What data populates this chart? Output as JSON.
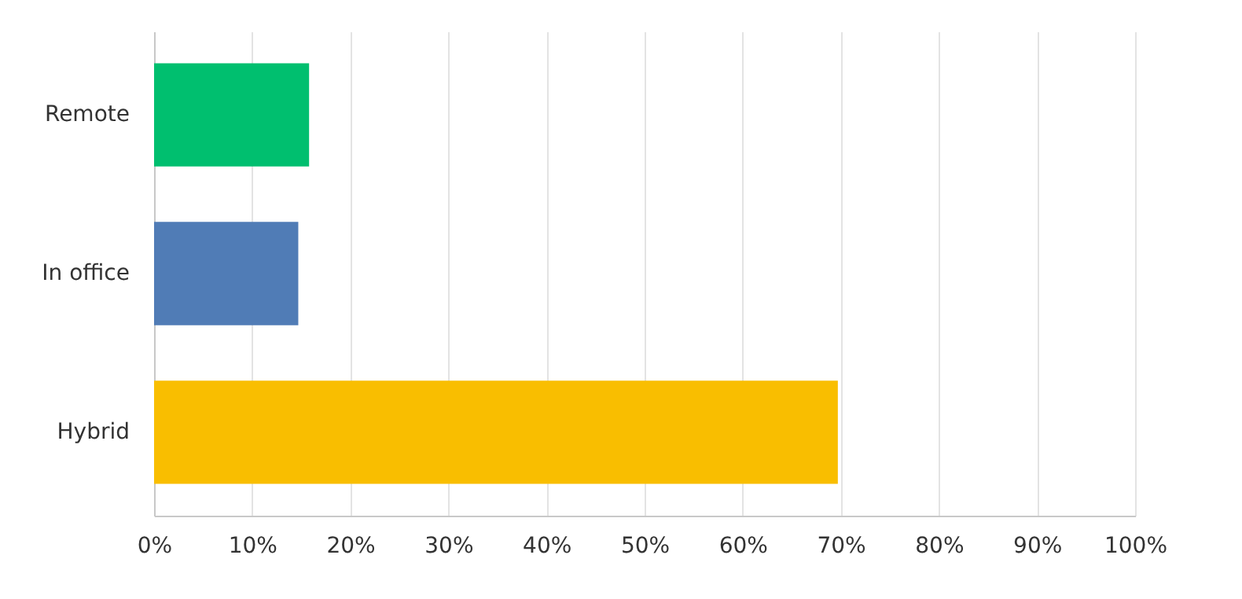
{
  "chart_data": {
    "type": "bar",
    "orientation": "horizontal",
    "categories": [
      "Remote",
      "In office",
      "Hybrid"
    ],
    "values": [
      15.8,
      14.7,
      69.7
    ],
    "colors": [
      "#00bf6f",
      "#507cb6",
      "#f9be00"
    ],
    "xlim": [
      0,
      100
    ],
    "xticks": [
      {
        "value": 0,
        "label": "0%"
      },
      {
        "value": 10,
        "label": "10%"
      },
      {
        "value": 20,
        "label": "20%"
      },
      {
        "value": 30,
        "label": "30%"
      },
      {
        "value": 40,
        "label": "40%"
      },
      {
        "value": 50,
        "label": "50%"
      },
      {
        "value": 60,
        "label": "60%"
      },
      {
        "value": 70,
        "label": "70%"
      },
      {
        "value": 80,
        "label": "80%"
      },
      {
        "value": 90,
        "label": "90%"
      },
      {
        "value": 100,
        "label": "100%"
      }
    ],
    "grid": "x"
  }
}
